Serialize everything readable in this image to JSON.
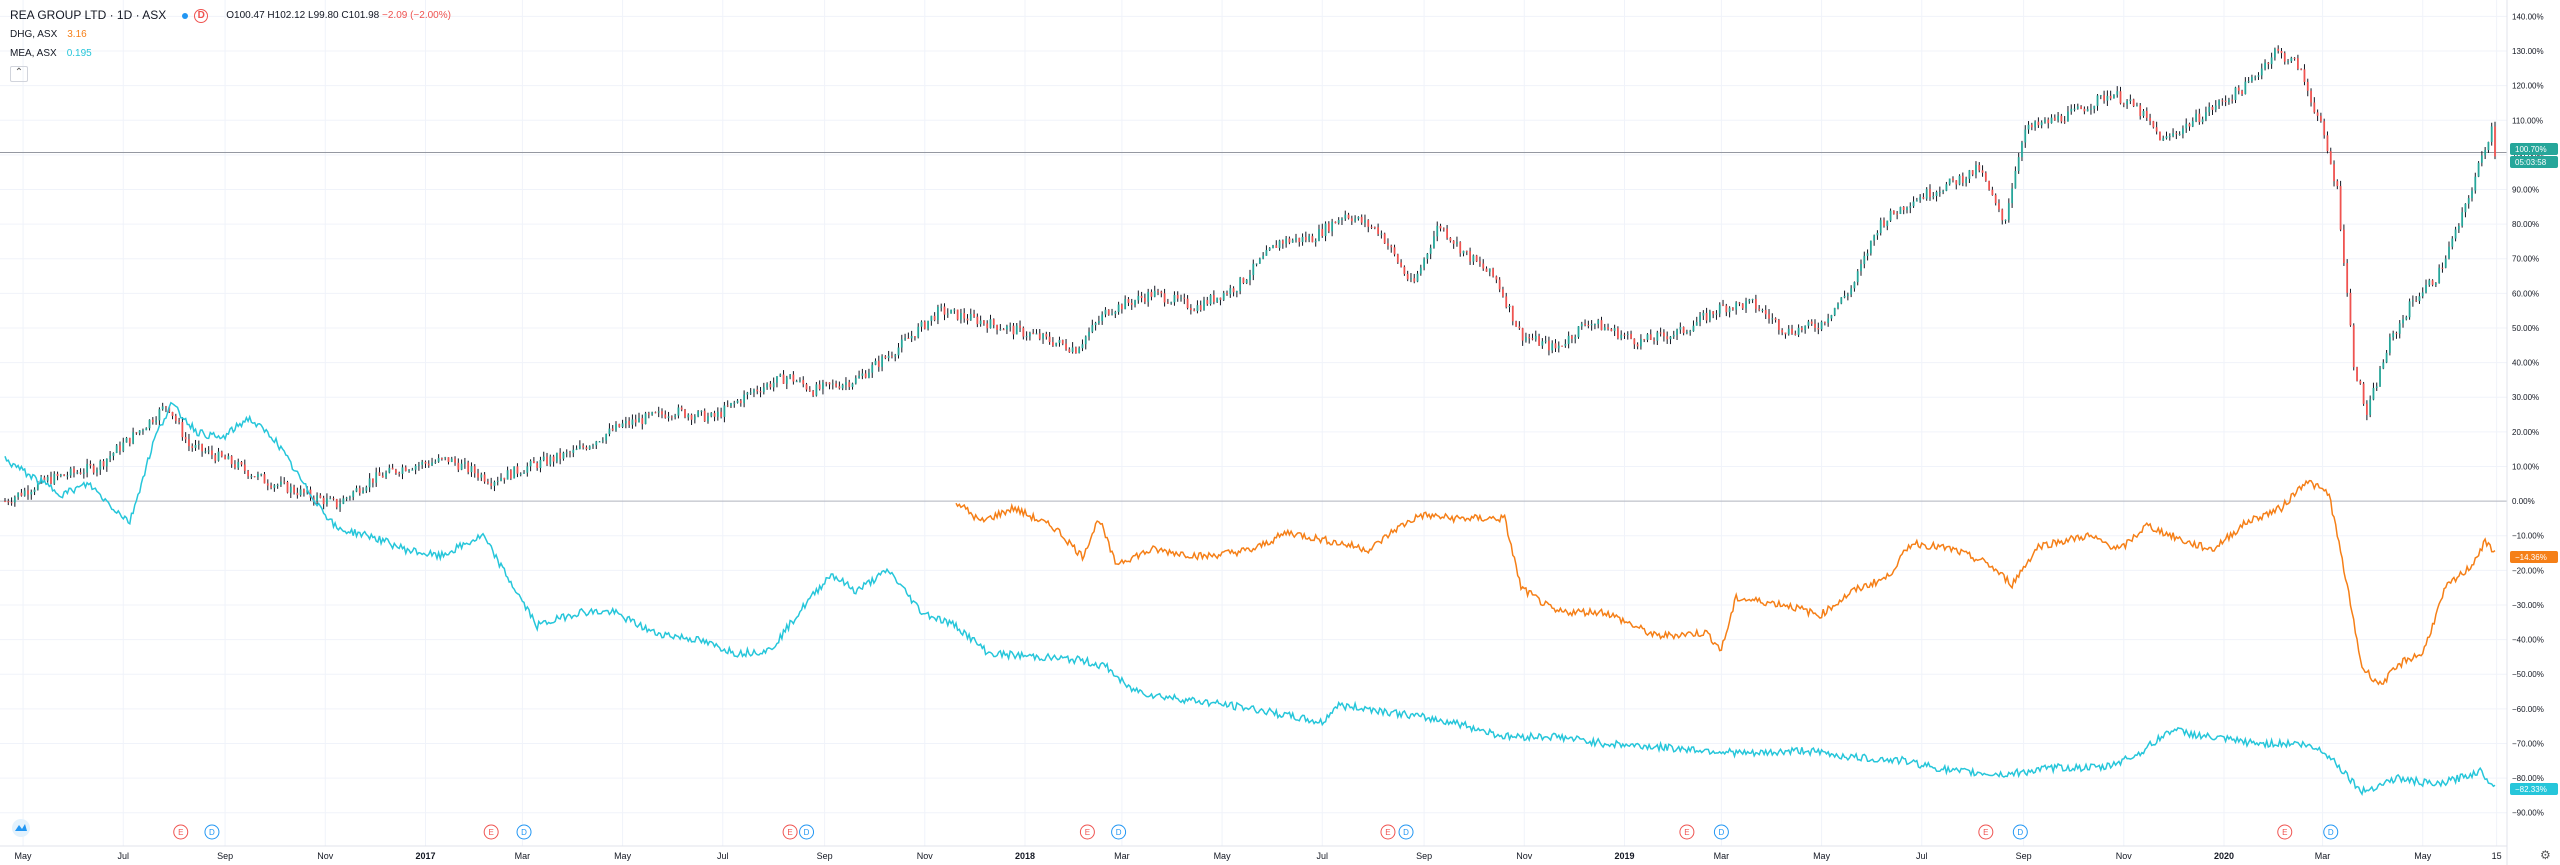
{
  "legend": {
    "main_title": "REA GROUP LTD · 1D · ASX",
    "interval_badge": "D",
    "ohlc": {
      "o_label": "O",
      "o_val": "100.47",
      "h_label": "H",
      "h_val": "102.12",
      "l_label": "L",
      "l_val": "99.80",
      "c_label": "C",
      "c_val": "101.98",
      "chg": "−2.09 (−2.00%)"
    },
    "compare1_name": "DHG, ASX",
    "compare1_value": "3.16",
    "compare2_name": "MEA, ASX",
    "compare2_value": "0.195",
    "collapse_glyph": "⌃"
  },
  "colors": {
    "rea_up": "#26a69a",
    "rea_down": "#ef5350",
    "rea_wick": "#131722",
    "dhg": "#f57f17",
    "mea": "#26c6da",
    "grid": "#f0f3fa",
    "axis_text": "#131722"
  },
  "badges": {
    "rea_price": "100.70%",
    "rea_timer": "05:03:58",
    "dhg": "−14.36%",
    "mea": "−82.33%"
  },
  "events": [
    {
      "letter": "E",
      "kind": "earnings",
      "date": "2016-08-05"
    },
    {
      "letter": "D",
      "kind": "dividend",
      "date": "2016-08-24"
    },
    {
      "letter": "E",
      "kind": "earnings",
      "date": "2017-02-10"
    },
    {
      "letter": "D",
      "kind": "dividend",
      "date": "2017-03-02"
    },
    {
      "letter": "E",
      "kind": "earnings",
      "date": "2017-08-11"
    },
    {
      "letter": "D",
      "kind": "dividend",
      "date": "2017-08-21"
    },
    {
      "letter": "E",
      "kind": "earnings",
      "date": "2018-02-08"
    },
    {
      "letter": "D",
      "kind": "dividend",
      "date": "2018-02-27"
    },
    {
      "letter": "E",
      "kind": "earnings",
      "date": "2018-08-10"
    },
    {
      "letter": "D",
      "kind": "dividend",
      "date": "2018-08-21"
    },
    {
      "letter": "E",
      "kind": "earnings",
      "date": "2019-02-08"
    },
    {
      "letter": "D",
      "kind": "dividend",
      "date": "2019-03-01"
    },
    {
      "letter": "E",
      "kind": "earnings",
      "date": "2019-08-09"
    },
    {
      "letter": "D",
      "kind": "dividend",
      "date": "2019-08-30"
    },
    {
      "letter": "E",
      "kind": "earnings",
      "date": "2020-02-07"
    },
    {
      "letter": "D",
      "kind": "dividend",
      "date": "2020-03-06"
    }
  ],
  "chart_data": {
    "type": "line",
    "y_unit": "percent change",
    "ylim": [
      -95,
      143
    ],
    "y_ticks": [
      140,
      130,
      120,
      110,
      100,
      90,
      80,
      70,
      60,
      50,
      40,
      30,
      20,
      10,
      0,
      -10,
      -20,
      -30,
      -40,
      -50,
      -60,
      -70,
      -80,
      -90
    ],
    "y_tick_labels": [
      "140.00%",
      "130.00%",
      "120.00%",
      "110.00%",
      "100.00%",
      "90.00%",
      "80.00%",
      "70.00%",
      "60.00%",
      "50.00%",
      "40.00%",
      "30.00%",
      "20.00%",
      "10.00%",
      "0.00%",
      "−10.00%",
      "−20.00%",
      "−30.00%",
      "−40.00%",
      "−50.00%",
      "−60.00%",
      "−70.00%",
      "−80.00%",
      "−90.00%"
    ],
    "x_range": [
      "2016-04-20",
      "2020-06-14"
    ],
    "x_ticks": [
      {
        "label": "May",
        "date": "2016-05-01"
      },
      {
        "label": "Jul",
        "date": "2016-07-01"
      },
      {
        "label": "Sep",
        "date": "2016-09-01"
      },
      {
        "label": "Nov",
        "date": "2016-11-01"
      },
      {
        "label": "2017",
        "date": "2017-01-01",
        "bold": true
      },
      {
        "label": "Mar",
        "date": "2017-03-01"
      },
      {
        "label": "May",
        "date": "2017-05-01"
      },
      {
        "label": "Jul",
        "date": "2017-07-01"
      },
      {
        "label": "Sep",
        "date": "2017-09-01"
      },
      {
        "label": "Nov",
        "date": "2017-11-01"
      },
      {
        "label": "2018",
        "date": "2018-01-01",
        "bold": true
      },
      {
        "label": "Mar",
        "date": "2018-03-01"
      },
      {
        "label": "May",
        "date": "2018-05-01"
      },
      {
        "label": "Jul",
        "date": "2018-07-01"
      },
      {
        "label": "Sep",
        "date": "2018-09-01"
      },
      {
        "label": "Nov",
        "date": "2018-11-01"
      },
      {
        "label": "2019",
        "date": "2019-01-01",
        "bold": true
      },
      {
        "label": "Mar",
        "date": "2019-03-01"
      },
      {
        "label": "May",
        "date": "2019-05-01"
      },
      {
        "label": "Jul",
        "date": "2019-07-01"
      },
      {
        "label": "Sep",
        "date": "2019-09-01"
      },
      {
        "label": "Nov",
        "date": "2019-11-01"
      },
      {
        "label": "2020",
        "date": "2020-01-01",
        "bold": true
      },
      {
        "label": "Mar",
        "date": "2020-03-01"
      },
      {
        "label": "May",
        "date": "2020-05-01"
      },
      {
        "label": "15",
        "date": "2020-06-15"
      }
    ],
    "grid": true,
    "series": [
      {
        "name": "REA GROUP LTD",
        "style": "candles",
        "points": [
          [
            "2016-04-20",
            0
          ],
          [
            "2016-05-15",
            6
          ],
          [
            "2016-06-15",
            10
          ],
          [
            "2016-07-10",
            20
          ],
          [
            "2016-07-28",
            28
          ],
          [
            "2016-08-10",
            16
          ],
          [
            "2016-09-01",
            12
          ],
          [
            "2016-09-25",
            6
          ],
          [
            "2016-10-20",
            2
          ],
          [
            "2016-11-08",
            -1
          ],
          [
            "2016-11-28",
            6
          ],
          [
            "2016-12-20",
            10
          ],
          [
            "2017-01-15",
            12
          ],
          [
            "2017-02-10",
            6
          ],
          [
            "2017-03-05",
            10
          ],
          [
            "2017-04-01",
            14
          ],
          [
            "2017-05-01",
            22
          ],
          [
            "2017-06-01",
            26
          ],
          [
            "2017-06-25",
            24
          ],
          [
            "2017-07-20",
            32
          ],
          [
            "2017-08-10",
            36
          ],
          [
            "2017-08-25",
            32
          ],
          [
            "2017-09-20",
            35
          ],
          [
            "2017-10-15",
            44
          ],
          [
            "2017-11-10",
            55
          ],
          [
            "2017-12-05",
            52
          ],
          [
            "2018-01-05",
            48
          ],
          [
            "2018-02-01",
            44
          ],
          [
            "2018-02-20",
            55
          ],
          [
            "2018-03-20",
            60
          ],
          [
            "2018-04-15",
            56
          ],
          [
            "2018-05-10",
            62
          ],
          [
            "2018-06-05",
            75
          ],
          [
            "2018-06-25",
            76
          ],
          [
            "2018-07-15",
            83
          ],
          [
            "2018-08-05",
            78
          ],
          [
            "2018-08-25",
            62
          ],
          [
            "2018-09-10",
            80
          ],
          [
            "2018-09-25",
            72
          ],
          [
            "2018-10-15",
            64
          ],
          [
            "2018-10-30",
            48
          ],
          [
            "2018-11-20",
            44
          ],
          [
            "2018-12-10",
            52
          ],
          [
            "2019-01-10",
            46
          ],
          [
            "2019-02-05",
            49
          ],
          [
            "2019-03-01",
            56
          ],
          [
            "2019-03-20",
            57
          ],
          [
            "2019-04-10",
            49
          ],
          [
            "2019-04-30",
            51
          ],
          [
            "2019-05-20",
            62
          ],
          [
            "2019-06-05",
            80
          ],
          [
            "2019-06-25",
            87
          ],
          [
            "2019-07-20",
            92
          ],
          [
            "2019-08-05",
            96
          ],
          [
            "2019-08-20",
            80
          ],
          [
            "2019-09-01",
            107
          ],
          [
            "2019-10-01",
            112
          ],
          [
            "2019-10-25",
            118
          ],
          [
            "2019-11-10",
            113
          ],
          [
            "2019-11-25",
            104
          ],
          [
            "2019-12-20",
            112
          ],
          [
            "2020-01-15",
            120
          ],
          [
            "2020-02-01",
            130
          ],
          [
            "2020-02-15",
            126
          ],
          [
            "2020-02-28",
            110
          ],
          [
            "2020-03-10",
            90
          ],
          [
            "2020-03-20",
            40
          ],
          [
            "2020-03-28",
            25
          ],
          [
            "2020-04-10",
            45
          ],
          [
            "2020-04-25",
            58
          ],
          [
            "2020-05-10",
            65
          ],
          [
            "2020-05-25",
            82
          ],
          [
            "2020-06-05",
            98
          ],
          [
            "2020-06-12",
            108
          ],
          [
            "2020-06-14",
            100.7
          ]
        ]
      },
      {
        "name": "DHG, ASX",
        "style": "line",
        "points": [
          [
            "2017-11-20",
            0
          ],
          [
            "2017-12-05",
            -6
          ],
          [
            "2017-12-25",
            -2
          ],
          [
            "2018-01-20",
            -8
          ],
          [
            "2018-02-05",
            -16
          ],
          [
            "2018-02-15",
            -5
          ],
          [
            "2018-02-25",
            -18
          ],
          [
            "2018-03-20",
            -14
          ],
          [
            "2018-04-20",
            -16
          ],
          [
            "2018-05-20",
            -14
          ],
          [
            "2018-06-10",
            -9
          ],
          [
            "2018-07-10",
            -12
          ],
          [
            "2018-07-30",
            -14
          ],
          [
            "2018-08-15",
            -8
          ],
          [
            "2018-08-30",
            -4
          ],
          [
            "2018-09-20",
            -5
          ],
          [
            "2018-10-20",
            -5
          ],
          [
            "2018-10-30",
            -25
          ],
          [
            "2018-11-20",
            -32
          ],
          [
            "2018-12-20",
            -32
          ],
          [
            "2019-01-20",
            -39
          ],
          [
            "2019-02-20",
            -38
          ],
          [
            "2019-03-01",
            -43
          ],
          [
            "2019-03-10",
            -28
          ],
          [
            "2019-04-10",
            -30
          ],
          [
            "2019-04-30",
            -33
          ],
          [
            "2019-05-20",
            -26
          ],
          [
            "2019-06-10",
            -22
          ],
          [
            "2019-06-25",
            -12
          ],
          [
            "2019-07-20",
            -14
          ],
          [
            "2019-08-10",
            -18
          ],
          [
            "2019-08-25",
            -24
          ],
          [
            "2019-09-10",
            -13
          ],
          [
            "2019-10-10",
            -10
          ],
          [
            "2019-10-30",
            -14
          ],
          [
            "2019-11-15",
            -7
          ],
          [
            "2019-12-10",
            -12
          ],
          [
            "2019-12-25",
            -14
          ],
          [
            "2020-01-15",
            -6
          ],
          [
            "2020-02-05",
            -2
          ],
          [
            "2020-02-20",
            6
          ],
          [
            "2020-03-05",
            2
          ],
          [
            "2020-03-15",
            -22
          ],
          [
            "2020-03-25",
            -48
          ],
          [
            "2020-04-05",
            -53
          ],
          [
            "2020-04-20",
            -46
          ],
          [
            "2020-05-01",
            -44
          ],
          [
            "2020-05-15",
            -25
          ],
          [
            "2020-05-30",
            -19
          ],
          [
            "2020-06-08",
            -12
          ],
          [
            "2020-06-14",
            -14.36
          ]
        ]
      },
      {
        "name": "MEA, ASX",
        "style": "line",
        "points": [
          [
            "2016-04-20",
            12
          ],
          [
            "2016-05-10",
            6
          ],
          [
            "2016-05-25",
            2
          ],
          [
            "2016-06-10",
            5
          ],
          [
            "2016-06-25",
            -2
          ],
          [
            "2016-07-05",
            -6
          ],
          [
            "2016-07-20",
            18
          ],
          [
            "2016-07-30",
            28
          ],
          [
            "2016-08-15",
            20
          ],
          [
            "2016-08-30",
            18
          ],
          [
            "2016-09-15",
            24
          ],
          [
            "2016-10-01",
            18
          ],
          [
            "2016-10-20",
            4
          ],
          [
            "2016-11-08",
            -8
          ],
          [
            "2016-11-28",
            -10
          ],
          [
            "2016-12-20",
            -14
          ],
          [
            "2017-01-10",
            -16
          ],
          [
            "2017-02-05",
            -10
          ],
          [
            "2017-02-20",
            -22
          ],
          [
            "2017-03-10",
            -36
          ],
          [
            "2017-04-05",
            -32
          ],
          [
            "2017-04-25",
            -32
          ],
          [
            "2017-05-20",
            -38
          ],
          [
            "2017-06-15",
            -40
          ],
          [
            "2017-07-10",
            -44
          ],
          [
            "2017-07-30",
            -43
          ],
          [
            "2017-08-20",
            -30
          ],
          [
            "2017-09-05",
            -21
          ],
          [
            "2017-09-20",
            -26
          ],
          [
            "2017-10-10",
            -20
          ],
          [
            "2017-10-30",
            -32
          ],
          [
            "2017-11-20",
            -36
          ],
          [
            "2017-12-10",
            -44
          ],
          [
            "2018-01-10",
            -45
          ],
          [
            "2018-02-05",
            -46
          ],
          [
            "2018-02-20",
            -48
          ],
          [
            "2018-03-05",
            -54
          ],
          [
            "2018-03-20",
            -56
          ],
          [
            "2018-04-20",
            -58
          ],
          [
            "2018-05-20",
            -60
          ],
          [
            "2018-06-10",
            -62
          ],
          [
            "2018-07-01",
            -64
          ],
          [
            "2018-07-10",
            -59
          ],
          [
            "2018-07-30",
            -60
          ],
          [
            "2018-08-25",
            -62
          ],
          [
            "2018-09-20",
            -64
          ],
          [
            "2018-10-20",
            -68
          ],
          [
            "2018-11-20",
            -68
          ],
          [
            "2018-12-20",
            -70
          ],
          [
            "2019-01-20",
            -71
          ],
          [
            "2019-02-20",
            -72
          ],
          [
            "2019-03-20",
            -73
          ],
          [
            "2019-04-20",
            -72
          ],
          [
            "2019-05-20",
            -74
          ],
          [
            "2019-06-20",
            -75
          ],
          [
            "2019-07-20",
            -78
          ],
          [
            "2019-08-20",
            -79
          ],
          [
            "2019-09-20",
            -77
          ],
          [
            "2019-10-20",
            -77
          ],
          [
            "2019-11-10",
            -73
          ],
          [
            "2019-11-30",
            -66
          ],
          [
            "2019-12-20",
            -68
          ],
          [
            "2020-01-20",
            -70
          ],
          [
            "2020-02-15",
            -70
          ],
          [
            "2020-03-01",
            -72
          ],
          [
            "2020-03-10",
            -76
          ],
          [
            "2020-03-25",
            -84
          ],
          [
            "2020-04-15",
            -80
          ],
          [
            "2020-05-10",
            -82
          ],
          [
            "2020-06-05",
            -78
          ],
          [
            "2020-06-14",
            -82.33
          ]
        ]
      }
    ]
  }
}
